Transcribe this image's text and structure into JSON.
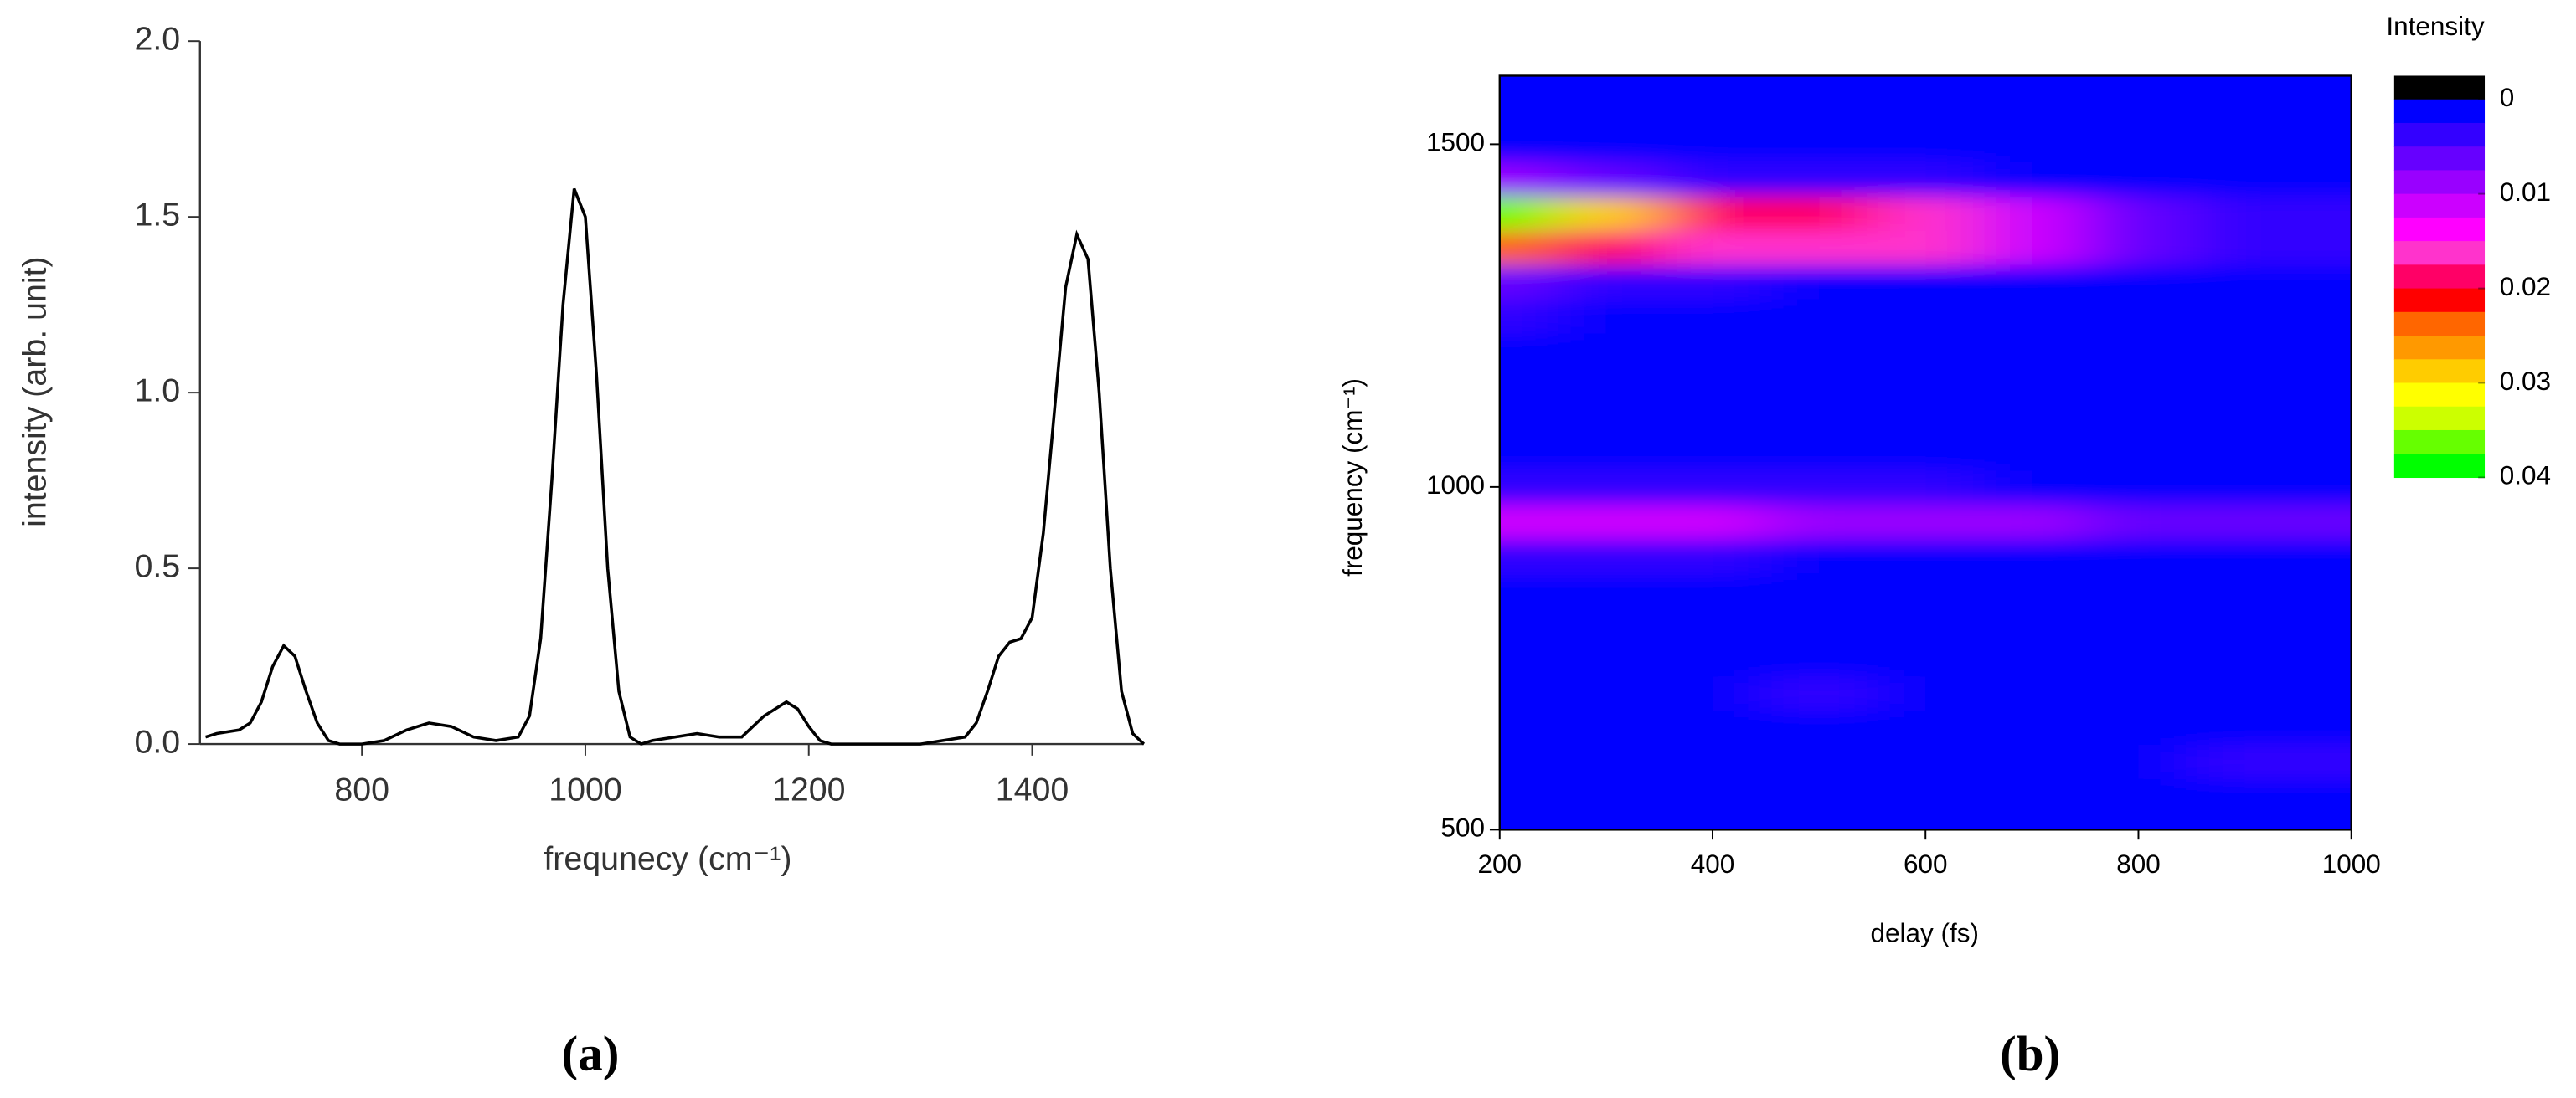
{
  "chart_data": [
    {
      "type": "line",
      "caption": "(a)",
      "xlabel": "frequnecy (cm⁻¹)",
      "ylabel": "intensity (arb. unit)",
      "color": "#000000",
      "x": [
        660,
        670,
        690,
        700,
        710,
        720,
        730,
        740,
        750,
        760,
        770,
        780,
        800,
        820,
        840,
        860,
        880,
        900,
        920,
        940,
        950,
        960,
        970,
        980,
        990,
        1000,
        1010,
        1020,
        1030,
        1040,
        1050,
        1060,
        1080,
        1100,
        1120,
        1140,
        1160,
        1180,
        1190,
        1200,
        1210,
        1220,
        1250,
        1280,
        1300,
        1320,
        1340,
        1350,
        1360,
        1370,
        1380,
        1390,
        1400,
        1410,
        1420,
        1430,
        1440,
        1450,
        1460,
        1470,
        1480,
        1490,
        1500
      ],
      "values": [
        0.02,
        0.03,
        0.04,
        0.06,
        0.12,
        0.22,
        0.28,
        0.25,
        0.15,
        0.06,
        0.01,
        0,
        0,
        0.01,
        0.04,
        0.06,
        0.05,
        0.02,
        0.01,
        0.02,
        0.08,
        0.3,
        0.75,
        1.25,
        1.58,
        1.5,
        1.05,
        0.5,
        0.15,
        0.02,
        0,
        0.01,
        0.02,
        0.03,
        0.02,
        0.02,
        0.08,
        0.12,
        0.1,
        0.05,
        0.01,
        0,
        0,
        0,
        0,
        0.01,
        0.02,
        0.06,
        0.15,
        0.25,
        0.29,
        0.3,
        0.36,
        0.6,
        0.95,
        1.3,
        1.45,
        1.38,
        1,
        0.5,
        0.15,
        0.03,
        0
      ],
      "xlim": [
        655,
        1500
      ],
      "xticks": [
        800,
        1000,
        1200,
        1400
      ],
      "ylim": [
        0,
        2
      ],
      "yticks": [
        {
          "value": 0,
          "label": "0.0"
        },
        0.5,
        {
          "value": 1,
          "label": "1.0"
        },
        1.5,
        {
          "value": 2,
          "label": "2.0"
        }
      ]
    },
    {
      "type": "heatmap",
      "caption": "(b)",
      "xlabel": "delay (fs)",
      "ylabel": "frequency (cm⁻¹)",
      "colorbar_title": "Intensity",
      "x": [
        200,
        300,
        400,
        500,
        600,
        700,
        800,
        900,
        1000
      ],
      "y": [
        500,
        550,
        600,
        650,
        700,
        750,
        800,
        850,
        900,
        950,
        1000,
        1050,
        1100,
        1150,
        1200,
        1250,
        1300,
        1350,
        1400,
        1450,
        1500,
        1550,
        1600
      ],
      "z": [
        [
          0,
          0,
          0,
          0,
          0,
          0,
          0,
          0,
          0
        ],
        [
          0,
          0,
          0,
          0,
          0,
          0,
          0.001,
          0.002,
          0.002
        ],
        [
          0,
          0,
          0,
          0,
          0,
          0,
          0.001,
          0.003,
          0.003
        ],
        [
          0.001,
          0.001,
          0.001,
          0.001,
          0.001,
          0,
          0.001,
          0.002,
          0.002
        ],
        [
          0.002,
          0.002,
          0.002,
          0.003,
          0.002,
          0.001,
          0.001,
          0.002,
          0.002
        ],
        [
          0,
          0,
          0,
          0.001,
          0,
          0,
          0,
          0,
          0
        ],
        [
          0,
          0,
          0,
          0,
          0,
          0,
          0,
          0,
          0
        ],
        [
          0,
          0,
          0,
          0,
          0,
          0,
          0,
          0,
          0
        ],
        [
          0.003,
          0.003,
          0.003,
          0.002,
          0.002,
          0.002,
          0.002,
          0.002,
          0.002
        ],
        [
          0.011,
          0.011,
          0.01,
          0.009,
          0.008,
          0.008,
          0.007,
          0.006,
          0.006
        ],
        [
          0.003,
          0.003,
          0.003,
          0.003,
          0.003,
          0.002,
          0.002,
          0.002,
          0.002
        ],
        [
          0,
          0,
          0,
          0,
          0,
          0,
          0,
          0,
          0
        ],
        [
          0,
          0,
          0,
          0,
          0,
          0,
          0,
          0,
          0
        ],
        [
          0,
          0,
          0,
          0,
          0,
          0,
          0,
          0,
          0
        ],
        [
          0,
          0,
          0,
          0,
          0,
          0,
          0,
          0,
          0
        ],
        [
          0.003,
          0.001,
          0,
          0,
          0,
          0,
          0,
          0,
          0
        ],
        [
          0.006,
          0.004,
          0.003,
          0.002,
          0.002,
          0.002,
          0.001,
          0,
          0
        ],
        [
          0.025,
          0.02,
          0.016,
          0.016,
          0.016,
          0.012,
          0.006,
          0.004,
          0.003
        ],
        [
          0.035,
          0.028,
          0.02,
          0.018,
          0.017,
          0.011,
          0.006,
          0.005,
          0.003
        ],
        [
          0.008,
          0.006,
          0.004,
          0.003,
          0.003,
          0.002,
          0.002,
          0.002,
          0.001
        ],
        [
          0.002,
          0.001,
          0,
          0,
          0,
          0,
          0,
          0,
          0
        ],
        [
          0,
          0,
          0,
          0,
          0,
          0,
          0,
          0,
          0
        ],
        [
          0,
          0,
          0,
          0,
          0,
          0,
          0,
          0,
          0
        ]
      ],
      "xlim": [
        200,
        1000
      ],
      "xticks": [
        200,
        400,
        600,
        800,
        1000
      ],
      "ylim": [
        500,
        1600
      ],
      "yticks": [
        500,
        1000,
        1500
      ],
      "zlim": [
        -0.0025,
        0.04
      ],
      "zticks": [
        0,
        0.01,
        0.02,
        0.03,
        0.04
      ],
      "colors": [
        "#000000",
        "#0000ff",
        "#3300ff",
        "#6600ff",
        "#9900ff",
        "#cc00ff",
        "#ff00ff",
        "#ff33cc",
        "#ff0066",
        "#ff0000",
        "#ff6600",
        "#ff9900",
        "#ffcc00",
        "#ffff00",
        "#ccff00",
        "#66ff00",
        "#00ff00"
      ]
    }
  ]
}
